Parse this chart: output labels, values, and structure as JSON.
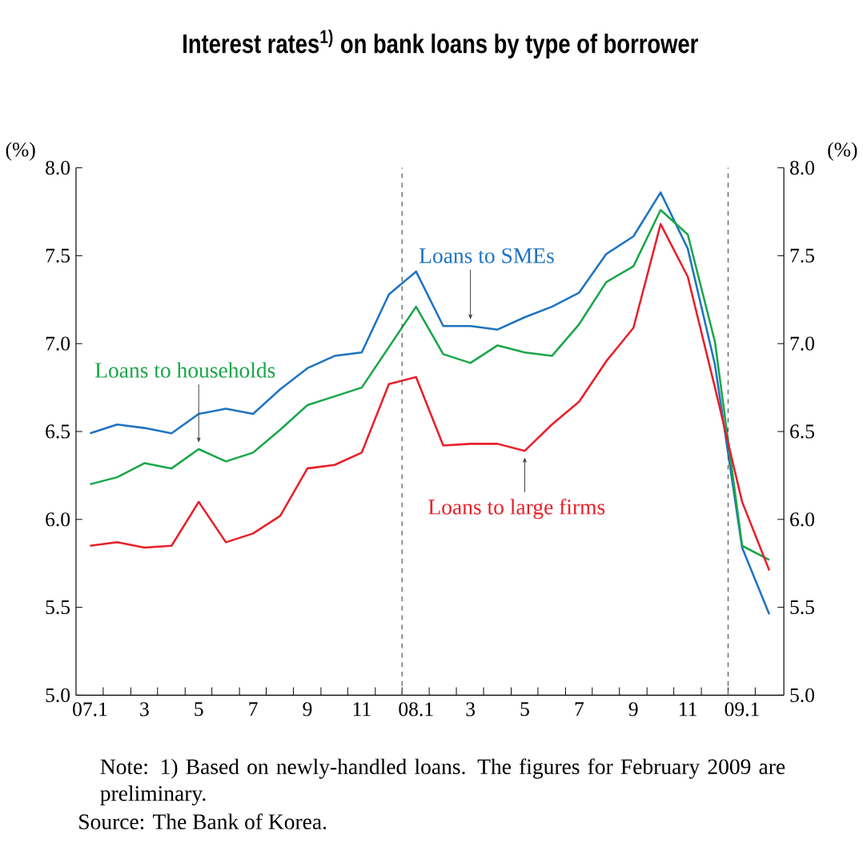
{
  "chart_data": {
    "type": "line",
    "title": "Interest rates$^{1)}$ on bank loans by type of borrower",
    "ylabel": "(%)",
    "y2label": "(%)",
    "x": [
      "2007-01",
      "2007-02",
      "2007-03",
      "2007-04",
      "2007-05",
      "2007-06",
      "2007-07",
      "2007-08",
      "2007-09",
      "2007-10",
      "2007-11",
      "2007-12",
      "2008-01",
      "2008-02",
      "2008-03",
      "2008-04",
      "2008-05",
      "2008-06",
      "2008-07",
      "2008-08",
      "2008-09",
      "2008-10",
      "2008-11",
      "2008-12",
      "2009-01",
      "2009-02"
    ],
    "series": [
      {
        "name": "Loans to SMEs",
        "color": "#1f74c0",
        "values": [
          6.49,
          6.54,
          6.52,
          6.49,
          6.6,
          6.63,
          6.6,
          6.74,
          6.86,
          6.93,
          6.95,
          7.28,
          7.41,
          7.1,
          7.1,
          7.08,
          7.15,
          7.21,
          7.29,
          7.51,
          7.61,
          7.86,
          7.54,
          6.88,
          5.84,
          5.46
        ]
      },
      {
        "name": "Loans to households",
        "color": "#1aa64a",
        "values": [
          6.2,
          6.24,
          6.32,
          6.29,
          6.4,
          6.33,
          6.38,
          6.51,
          6.65,
          6.7,
          6.75,
          6.98,
          7.21,
          6.94,
          6.89,
          6.99,
          6.95,
          6.93,
          7.11,
          7.35,
          7.44,
          7.76,
          7.62,
          7.01,
          5.85,
          5.77
        ]
      },
      {
        "name": "Loans to large firms",
        "color": "#e8202a",
        "values": [
          5.85,
          5.87,
          5.84,
          5.85,
          6.1,
          5.87,
          5.92,
          6.02,
          6.29,
          6.31,
          6.38,
          6.77,
          6.81,
          6.42,
          6.43,
          6.43,
          6.39,
          6.54,
          6.67,
          6.9,
          7.09,
          7.68,
          7.38,
          6.75,
          6.1,
          5.71
        ]
      }
    ],
    "xlim": [
      "2006-12-16",
      "2009-02-16"
    ],
    "xticks": [
      {
        "value": "2007-01",
        "label": "07.1"
      },
      {
        "value": "2007-03",
        "label": "3"
      },
      {
        "value": "2007-05",
        "label": "5"
      },
      {
        "value": "2007-07",
        "label": "7"
      },
      {
        "value": "2007-09",
        "label": "9"
      },
      {
        "value": "2007-11",
        "label": "11"
      },
      {
        "value": "2008-01",
        "label": "08.1"
      },
      {
        "value": "2008-03",
        "label": "3"
      },
      {
        "value": "2008-05",
        "label": "5"
      },
      {
        "value": "2008-07",
        "label": "7"
      },
      {
        "value": "2008-09",
        "label": "9"
      },
      {
        "value": "2008-11",
        "label": "11"
      },
      {
        "value": "2009-01",
        "label": "09.1"
      },
      {
        "value": "2007-01-16",
        "label": null
      },
      {
        "value": "2007-02-15",
        "label": null
      },
      {
        "value": "2007-03-16",
        "label": null
      },
      {
        "value": "2007-04-16",
        "label": null
      },
      {
        "value": "2007-05-16",
        "label": null
      },
      {
        "value": "2007-06-16",
        "label": null
      },
      {
        "value": "2007-07-16",
        "label": null
      },
      {
        "value": "2007-08-16",
        "label": null
      },
      {
        "value": "2007-09-16",
        "label": null
      },
      {
        "value": "2007-10-16",
        "label": null
      },
      {
        "value": "2007-11-16",
        "label": null
      },
      {
        "value": "2007-12-16",
        "label": null
      },
      {
        "value": "2008-01-16",
        "label": null
      },
      {
        "value": "2008-02-15",
        "label": null
      },
      {
        "value": "2008-03-16",
        "label": null
      },
      {
        "value": "2008-04-16",
        "label": null
      },
      {
        "value": "2008-05-16",
        "label": null
      },
      {
        "value": "2008-06-16",
        "label": null
      },
      {
        "value": "2008-07-16",
        "label": null
      },
      {
        "value": "2008-08-16",
        "label": null
      },
      {
        "value": "2008-09-16",
        "label": null
      },
      {
        "value": "2008-10-16",
        "label": null
      },
      {
        "value": "2008-11-16",
        "label": null
      },
      {
        "value": "2008-12-16",
        "label": null
      },
      {
        "value": "2009-01-16",
        "label": null
      }
    ],
    "ylim": [
      5.0,
      8.0
    ],
    "yticks": [
      {
        "value": 5,
        "label": "5.0"
      },
      {
        "value": 5.5,
        "label": "5.5"
      },
      {
        "value": 6,
        "label": "6.0"
      },
      {
        "value": 6.5,
        "label": "6.5"
      },
      {
        "value": 7,
        "label": "7.0"
      },
      {
        "value": 7.5,
        "label": "7.5"
      },
      {
        "value": 8,
        "label": "8.0"
      }
    ],
    "y2lim": [
      5.0,
      8.0
    ],
    "y2ticks": [
      {
        "value": 5,
        "label": "5.0"
      },
      {
        "value": 5.5,
        "label": "5.5"
      },
      {
        "value": 6,
        "label": "6.0"
      },
      {
        "value": 6.5,
        "label": "6.5"
      },
      {
        "value": 7,
        "label": "7.0"
      },
      {
        "value": 7.5,
        "label": "7.5"
      },
      {
        "value": 8,
        "label": "8.0"
      }
    ],
    "ref_lines": [
      {
        "axis": "x",
        "value": "2007-12-16",
        "color": "#555555",
        "line_style": "dashed"
      },
      {
        "axis": "x",
        "value": "2008-12-16",
        "color": "#555555",
        "line_style": "dashed"
      }
    ],
    "grid": false,
    "line_style": "solid",
    "annotations": [
      "Note: 1) Based on newly-handled loans. The figures for February 2009 are preliminary.",
      "Source: The Bank of Korea."
    ]
  }
}
